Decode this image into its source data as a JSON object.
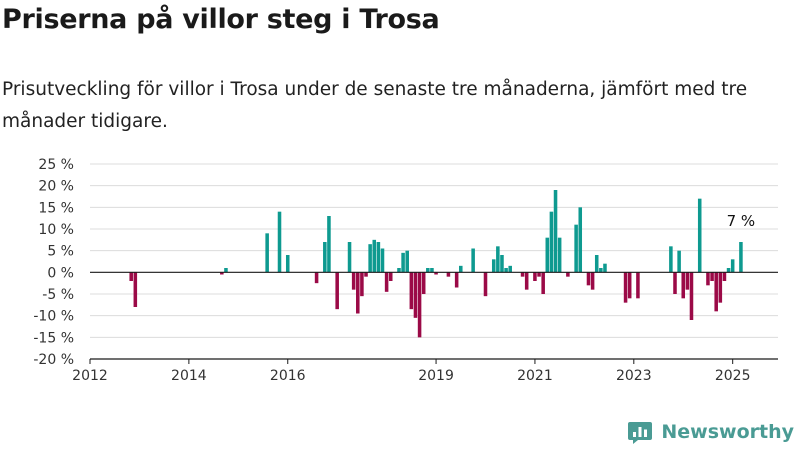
{
  "title": "Priserna på villor steg i Trosa",
  "subtitle": "Prisutveckling för villor i Trosa under de senaste tre månaderna, jämfört med tre månader tidigare.",
  "brand": {
    "name": "Newsworthy",
    "icon": "bar-chart-logo-icon"
  },
  "colors": {
    "positive": "#0e9a90",
    "negative": "#9b0a47",
    "grid": "#dcdcdc",
    "axis": "#1a1a1a",
    "brand": "#4a9b94"
  },
  "chart_data": {
    "type": "bar",
    "title": "",
    "xlabel": "",
    "ylabel": "",
    "ylim": [
      -20,
      25
    ],
    "yticks": [
      {
        "value": -20,
        "label": "-20 %"
      },
      {
        "value": -15,
        "label": "-15 %"
      },
      {
        "value": -10,
        "label": "-10 %"
      },
      {
        "value": -5,
        "label": "-5 %"
      },
      {
        "value": 0,
        "label": "0 %"
      },
      {
        "value": 5,
        "label": "5 %"
      },
      {
        "value": 10,
        "label": "10 %"
      },
      {
        "value": 15,
        "label": "15 %"
      },
      {
        "value": 20,
        "label": "20 %"
      },
      {
        "value": 25,
        "label": "25 %"
      }
    ],
    "xlim": [
      "2012-01",
      "2025-12"
    ],
    "xticks": [
      {
        "value": "2012-01",
        "label": "2012"
      },
      {
        "value": "2014-01",
        "label": "2014"
      },
      {
        "value": "2016-01",
        "label": "2016"
      },
      {
        "value": "2019-01",
        "label": "2019"
      },
      {
        "value": "2021-01",
        "label": "2021"
      },
      {
        "value": "2023-01",
        "label": "2023"
      },
      {
        "value": "2025-01",
        "label": "2025"
      }
    ],
    "grid": true,
    "annotation": "7 %",
    "points": [
      {
        "month": "2012-11",
        "value": -2
      },
      {
        "month": "2012-12",
        "value": -8
      },
      {
        "month": "2014-09",
        "value": -0.5
      },
      {
        "month": "2014-10",
        "value": 1
      },
      {
        "month": "2015-08",
        "value": 9
      },
      {
        "month": "2015-11",
        "value": 14
      },
      {
        "month": "2016-01",
        "value": 4
      },
      {
        "month": "2016-08",
        "value": -2.5
      },
      {
        "month": "2016-10",
        "value": 7
      },
      {
        "month": "2016-11",
        "value": 13
      },
      {
        "month": "2017-01",
        "value": -8.5
      },
      {
        "month": "2017-04",
        "value": 7
      },
      {
        "month": "2017-05",
        "value": -4
      },
      {
        "month": "2017-06",
        "value": -9.5
      },
      {
        "month": "2017-07",
        "value": -5.5
      },
      {
        "month": "2017-08",
        "value": -1
      },
      {
        "month": "2017-09",
        "value": 6.5
      },
      {
        "month": "2017-10",
        "value": 7.5
      },
      {
        "month": "2017-11",
        "value": 7
      },
      {
        "month": "2017-12",
        "value": 5.5
      },
      {
        "month": "2018-01",
        "value": -4.5
      },
      {
        "month": "2018-02",
        "value": -2
      },
      {
        "month": "2018-04",
        "value": 1
      },
      {
        "month": "2018-05",
        "value": 4.5
      },
      {
        "month": "2018-06",
        "value": 5
      },
      {
        "month": "2018-07",
        "value": -8.5
      },
      {
        "month": "2018-08",
        "value": -10.5
      },
      {
        "month": "2018-09",
        "value": -15
      },
      {
        "month": "2018-10",
        "value": -5
      },
      {
        "month": "2018-11",
        "value": 1
      },
      {
        "month": "2018-12",
        "value": 1
      },
      {
        "month": "2019-01",
        "value": -0.5
      },
      {
        "month": "2019-04",
        "value": -1
      },
      {
        "month": "2019-06",
        "value": -3.5
      },
      {
        "month": "2019-07",
        "value": 1.5
      },
      {
        "month": "2019-10",
        "value": 5.5
      },
      {
        "month": "2020-01",
        "value": -5.5
      },
      {
        "month": "2020-03",
        "value": 3
      },
      {
        "month": "2020-04",
        "value": 6
      },
      {
        "month": "2020-05",
        "value": 4
      },
      {
        "month": "2020-06",
        "value": 1
      },
      {
        "month": "2020-07",
        "value": 1.5
      },
      {
        "month": "2020-10",
        "value": -1
      },
      {
        "month": "2020-11",
        "value": -4
      },
      {
        "month": "2021-01",
        "value": -2
      },
      {
        "month": "2021-02",
        "value": -1
      },
      {
        "month": "2021-03",
        "value": -5
      },
      {
        "month": "2021-04",
        "value": 8
      },
      {
        "month": "2021-05",
        "value": 14
      },
      {
        "month": "2021-06",
        "value": 19
      },
      {
        "month": "2021-07",
        "value": 8
      },
      {
        "month": "2021-09",
        "value": -1
      },
      {
        "month": "2021-11",
        "value": 11
      },
      {
        "month": "2021-12",
        "value": 15
      },
      {
        "month": "2022-02",
        "value": -3
      },
      {
        "month": "2022-03",
        "value": -4
      },
      {
        "month": "2022-04",
        "value": 4
      },
      {
        "month": "2022-05",
        "value": 1
      },
      {
        "month": "2022-06",
        "value": 2
      },
      {
        "month": "2022-11",
        "value": -7
      },
      {
        "month": "2022-12",
        "value": -6
      },
      {
        "month": "2023-02",
        "value": -6
      },
      {
        "month": "2023-10",
        "value": 6
      },
      {
        "month": "2023-11",
        "value": -5
      },
      {
        "month": "2023-12",
        "value": 5
      },
      {
        "month": "2024-01",
        "value": -6
      },
      {
        "month": "2024-02",
        "value": -4
      },
      {
        "month": "2024-03",
        "value": -11
      },
      {
        "month": "2024-05",
        "value": 17
      },
      {
        "month": "2024-07",
        "value": -3
      },
      {
        "month": "2024-08",
        "value": -2
      },
      {
        "month": "2024-09",
        "value": -9
      },
      {
        "month": "2024-10",
        "value": -7
      },
      {
        "month": "2024-11",
        "value": -2
      },
      {
        "month": "2024-12",
        "value": 1
      },
      {
        "month": "2025-01",
        "value": 3
      },
      {
        "month": "2025-03",
        "value": 7
      }
    ]
  }
}
